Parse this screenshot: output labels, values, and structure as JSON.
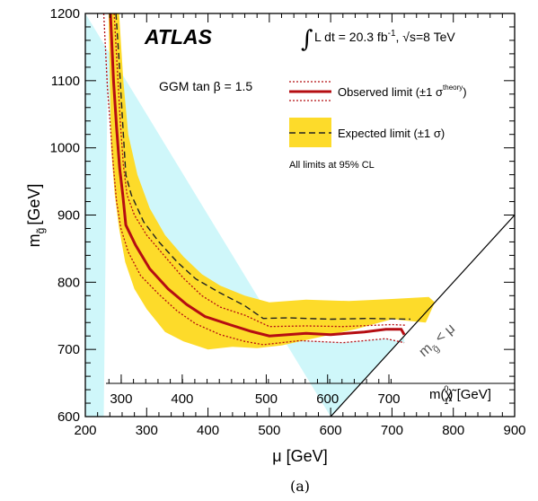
{
  "chart_data": {
    "type": "line",
    "xlabel": "μ [GeV]",
    "ylabel": "m",
    "ylabel_sub": "g̃",
    "ylabel_unit": "[GeV]",
    "xlim": [
      200,
      900
    ],
    "ylim": [
      600,
      1200
    ],
    "x_ticks": [
      200,
      300,
      400,
      500,
      600,
      700,
      800,
      900
    ],
    "y_ticks": [
      600,
      700,
      800,
      900,
      1000,
      1100,
      1200
    ],
    "neutralino_axis": {
      "label": "m(χ̃",
      "label_sup": "0",
      "label_sub": "1",
      "label_unit": ") [GeV]",
      "tick_labels": [
        "300",
        "400",
        "500",
        "600",
        "700"
      ],
      "tick_mu_positions": [
        258.5,
        358,
        495,
        595,
        695
      ]
    },
    "experiment": "ATLAS",
    "luminosity": {
      "int_sym": "∫",
      "text": "L dt = 20.3 fb",
      "sup": "-1",
      "sep": ", √s=8 TeV"
    },
    "model_label": "GGM tan β = 1.5",
    "legend": {
      "observed": "Observed limit (±1 σ",
      "observed_sup": "theory",
      "observed_end": ")",
      "expected": "Expected limit (±1 σ)",
      "cl_note": "All limits at 95% CL"
    },
    "excluded_region_label": "m",
    "excluded_region_sub": "g̃",
    "excluded_region_rest": " < μ",
    "caption": "(a)",
    "colors": {
      "observed": "#b50d12",
      "expected": "#222222",
      "band": "#fddb2a",
      "excluded": "#cff7fa"
    },
    "series": {
      "observed": {
        "x": [
          241,
          246,
          251,
          256,
          261,
          266,
          282,
          305,
          335,
          365,
          395,
          435,
          470,
          500,
          560,
          600,
          655,
          690,
          715,
          720
        ],
        "y": [
          1200,
          1100,
          1030,
          970,
          930,
          885,
          855,
          820,
          790,
          767,
          749,
          737,
          727,
          720,
          724,
          722,
          726,
          730,
          730,
          722
        ]
      },
      "observed_up": {
        "x": [
          247,
          252,
          257,
          262,
          268,
          280,
          300,
          330,
          360,
          390,
          420,
          460,
          500,
          560,
          620,
          700,
          722
        ],
        "y": [
          1200,
          1120,
          1040,
          975,
          930,
          900,
          870,
          838,
          806,
          780,
          763,
          751,
          734,
          735,
          734,
          737,
          736
        ]
      },
      "observed_down": {
        "x": [
          230,
          236,
          241,
          246,
          251,
          258,
          270,
          290,
          320,
          350,
          380,
          420,
          460,
          490,
          550,
          620,
          690,
          720
        ],
        "y": [
          1200,
          1090,
          1030,
          970,
          920,
          880,
          845,
          810,
          782,
          757,
          738,
          722,
          712,
          707,
          713,
          710,
          716,
          710
        ]
      },
      "expected": {
        "x": [
          250,
          255,
          260,
          266,
          275,
          295,
          320,
          350,
          380,
          420,
          460,
          490,
          530,
          600,
          660,
          730
        ],
        "y": [
          1200,
          1130,
          1050,
          960,
          930,
          890,
          860,
          830,
          805,
          784,
          765,
          746,
          747,
          745,
          746,
          745
        ]
      },
      "expected_band_upper": {
        "x": [
          255,
          262,
          270,
          285,
          305,
          330,
          360,
          390,
          420,
          460,
          500,
          560,
          630,
          700,
          760,
          770
        ],
        "y": [
          1200,
          1100,
          1020,
          960,
          910,
          870,
          838,
          812,
          795,
          780,
          770,
          774,
          772,
          775,
          778,
          770
        ]
      },
      "expected_band_lower": {
        "x": [
          755,
          700,
          640,
          580,
          520,
          480,
          440,
          400,
          360,
          330,
          300,
          280,
          265,
          255,
          248,
          242,
          238
        ],
        "y": [
          740,
          745,
          730,
          718,
          706,
          702,
          704,
          700,
          712,
          726,
          760,
          790,
          830,
          880,
          930,
          1000,
          1200
        ]
      },
      "excluded_region": {
        "x": [
          200,
          200,
          230,
          236,
          241,
          246,
          251,
          258,
          270,
          290,
          320,
          350,
          380,
          420,
          460,
          490,
          550,
          620,
          690,
          720,
          720,
          600
        ],
        "y": [
          1200,
          600,
          600,
          1090,
          1030,
          970,
          920,
          880,
          845,
          810,
          782,
          757,
          738,
          722,
          712,
          707,
          713,
          710,
          716,
          710,
          720,
          600
        ]
      }
    }
  }
}
